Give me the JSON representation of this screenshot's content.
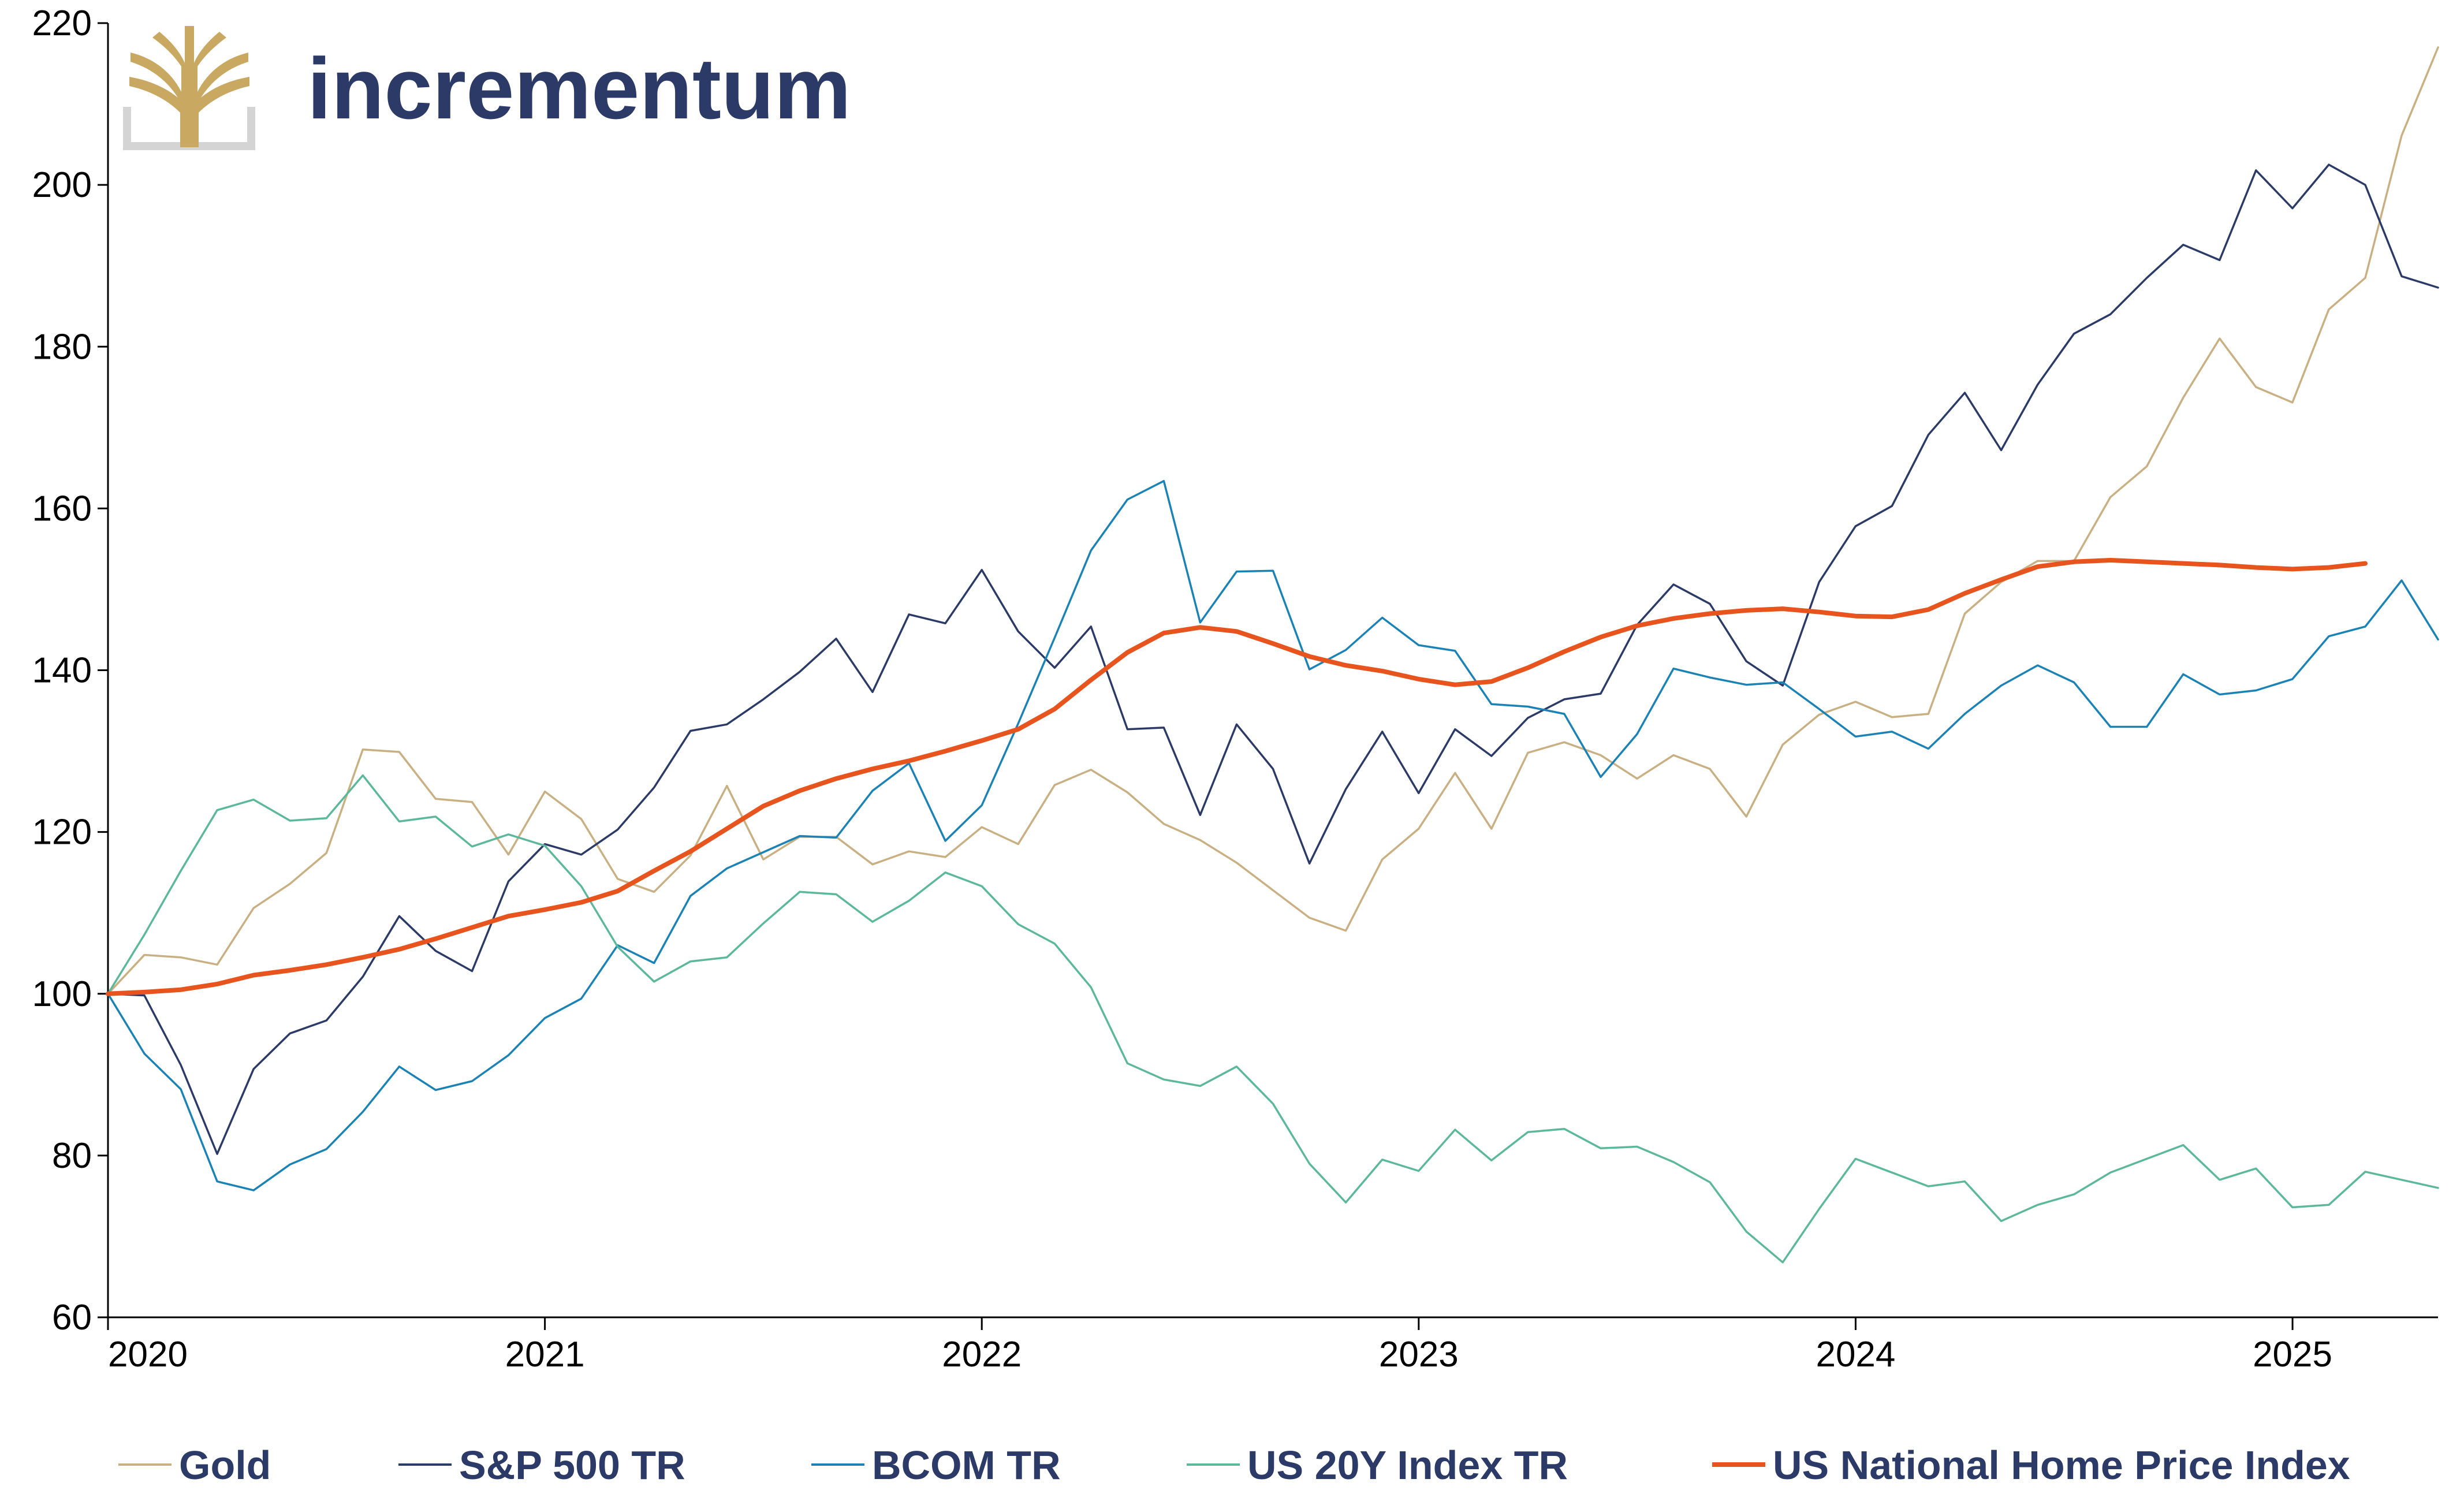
{
  "brand": {
    "name": "incrementum",
    "color": "#2b3a67",
    "logo_color": "#c9a961"
  },
  "chart_data": {
    "type": "line",
    "ylim": [
      60,
      220
    ],
    "xlim": [
      2020.0,
      2025.333
    ],
    "y_ticks": [
      "60",
      "80",
      "100",
      "120",
      "140",
      "160",
      "180",
      "200",
      "220"
    ],
    "x_ticks": [
      "2020",
      "2021",
      "2022",
      "2023",
      "2024",
      "2025"
    ],
    "grid": false,
    "legend_position": "bottom",
    "series": [
      {
        "name": "Gold",
        "color": "#c9b083",
        "x_start": 2020.0,
        "x_step": 0.08333,
        "values": [
          100,
          104.8,
          104.5,
          103.6,
          110.6,
          113.6,
          117.4,
          130.2,
          129.9,
          124.1,
          123.7,
          117.2,
          125,
          121.6,
          114.2,
          112.6,
          117.1,
          125.7,
          116.6,
          119.4,
          119.4,
          116,
          117.6,
          116.9,
          120.6,
          118.5,
          125.8,
          127.7,
          124.9,
          121,
          119,
          116.2,
          112.8,
          109.4,
          107.8,
          116.6,
          120.4,
          127.3,
          120.4,
          129.8,
          131.1,
          129.5,
          126.6,
          129.5,
          127.8,
          121.9,
          130.8,
          134.5,
          136.1,
          134.2,
          134.6,
          147,
          150.9,
          153.5,
          153.5,
          161.4,
          165.2,
          173.7,
          181,
          175,
          173.1,
          184.6,
          188.5,
          206.1,
          217
        ]
      },
      {
        "name": "S&P 500 TR",
        "color": "#2b3a67",
        "x_start": 2020.0,
        "x_step": 0.08333,
        "values": [
          100,
          99.8,
          91.2,
          80.2,
          90.7,
          95.1,
          96.7,
          102.1,
          109.6,
          105.3,
          102.8,
          113.9,
          118.5,
          117.2,
          120.3,
          125.5,
          132.5,
          133.3,
          136.4,
          139.8,
          143.9,
          137.3,
          146.9,
          145.8,
          152.4,
          144.8,
          140.3,
          145.4,
          132.7,
          132.9,
          122.1,
          133.3,
          127.8,
          116.1,
          125.3,
          132.4,
          124.8,
          132.7,
          129.4,
          134.1,
          136.4,
          137.1,
          145.6,
          150.6,
          148.2,
          141.1,
          138.1,
          150.9,
          157.8,
          160.3,
          169.1,
          174.3,
          167.2,
          175.3,
          181.6,
          184,
          188.5,
          192.6,
          190.7,
          201.8,
          197.1,
          202.5,
          200,
          188.7,
          187.3
        ]
      },
      {
        "name": "BCOM TR",
        "color": "#1a82b5",
        "x_start": 2020.0,
        "x_step": 0.08333,
        "values": [
          100,
          92.6,
          88.2,
          76.8,
          75.7,
          78.9,
          80.8,
          85.4,
          91,
          88.1,
          89.2,
          92.4,
          97,
          99.4,
          106,
          103.8,
          112.1,
          115.5,
          117.5,
          119.5,
          119.3,
          125.1,
          128.5,
          118.9,
          123.3,
          133.4,
          144,
          154.8,
          161.1,
          163.4,
          145.9,
          152.2,
          152.3,
          140.1,
          142.5,
          146.5,
          143.1,
          142.4,
          135.8,
          135.5,
          134.6,
          126.8,
          132.1,
          140.2,
          139.1,
          138.2,
          138.5,
          135.2,
          131.8,
          132.4,
          130.3,
          134.6,
          138.1,
          140.6,
          138.5,
          133,
          133,
          139.5,
          137,
          137.5,
          138.9,
          144.2,
          145.4,
          151.1,
          143.8
        ]
      },
      {
        "name": "US 20Y Index TR",
        "color": "#5cb89a",
        "x_start": 2020.0,
        "x_step": 0.08333,
        "values": [
          100,
          107.3,
          115.2,
          122.7,
          124,
          121.4,
          121.7,
          127,
          121.3,
          121.9,
          118.2,
          119.7,
          118.3,
          113.3,
          105.8,
          101.5,
          104,
          104.5,
          108.7,
          112.6,
          112.3,
          108.9,
          111.5,
          115,
          113.3,
          108.6,
          106.2,
          100.8,
          91.4,
          89.4,
          88.6,
          91,
          86.4,
          79,
          74.2,
          79.5,
          78.1,
          83.2,
          79.4,
          82.9,
          83.3,
          80.9,
          81.1,
          79.2,
          76.7,
          70.6,
          66.8,
          73.4,
          79.6,
          77.9,
          76.2,
          76.8,
          71.9,
          73.9,
          75.2,
          77.9,
          79.6,
          81.3,
          77,
          78.4,
          73.6,
          73.9,
          78,
          77,
          76
        ]
      },
      {
        "name": "US National Home Price Index",
        "color": "#e8541e",
        "x_start": 2020.0,
        "x_step": 0.08333,
        "values": [
          100,
          100.2,
          100.5,
          101.2,
          102.3,
          102.9,
          103.6,
          104.5,
          105.5,
          106.8,
          108.2,
          109.6,
          110.4,
          111.3,
          112.7,
          115.2,
          117.6,
          120.4,
          123.2,
          125.1,
          126.6,
          127.8,
          128.8,
          130,
          131.3,
          132.7,
          135.2,
          138.8,
          142.2,
          144.6,
          145.3,
          144.8,
          143.3,
          141.7,
          140.6,
          139.9,
          138.9,
          138.2,
          138.6,
          140.3,
          142.3,
          144.1,
          145.5,
          146.4,
          147,
          147.4,
          147.6,
          147.2,
          146.7,
          146.6,
          147.5,
          149.5,
          151.2,
          152.8,
          153.4,
          153.6,
          153.4,
          153.2,
          153,
          152.7,
          152.5,
          152.7,
          153.2
        ]
      }
    ]
  }
}
